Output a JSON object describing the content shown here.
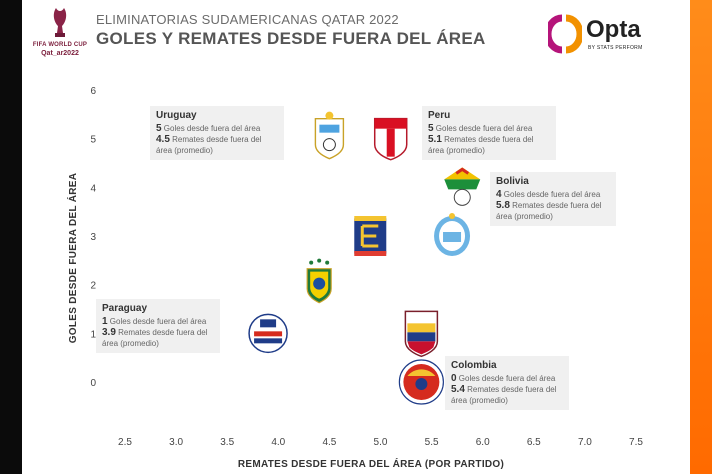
{
  "header": {
    "subtitle": "ELIMINATORIAS SUDAMERICANAS QATAR 2022",
    "title": "GOLES Y REMATES DESDE FUERA DEL ÁREA"
  },
  "wc_logo": {
    "line1": "FIFA WORLD CUP",
    "line2": "Qat_ar2022"
  },
  "opta": {
    "brand": "Opta",
    "by": "BY STATS PERFORM",
    "accent_left": "#b5147a",
    "accent_right": "#f29100"
  },
  "colors": {
    "background": "#ffffff",
    "side_strip": "#ff6a00",
    "grid": "#e6e6e6",
    "annotation_bg": "#f0f0f0"
  },
  "chart_data": {
    "type": "scatter",
    "xlabel": "REMATES DESDE FUERA DEL ÁREA (POR PARTIDO)",
    "ylabel": "GOLES DESDE FUERA DEL ÁREA",
    "xlim": [
      2.5,
      7.5
    ],
    "ylim": [
      0,
      6
    ],
    "x_ticks": [
      "2.5",
      "3.0",
      "3.5",
      "4.0",
      "4.5",
      "5.0",
      "5.5",
      "6.0",
      "6.5",
      "7.0",
      "7.5"
    ],
    "y_ticks": [
      "0",
      "1",
      "2",
      "3",
      "4",
      "5",
      "6"
    ],
    "grid": false,
    "points": [
      {
        "team": "Uruguay",
        "x": 4.5,
        "y": 5,
        "icon": "uruguay-crest-icon"
      },
      {
        "team": "Peru",
        "x": 5.1,
        "y": 5,
        "icon": "peru-crest-icon"
      },
      {
        "team": "Bolivia",
        "x": 5.8,
        "y": 4,
        "icon": "bolivia-crest-icon"
      },
      {
        "team": "Ecuador",
        "x": 4.9,
        "y": 3,
        "icon": "ecuador-crest-icon"
      },
      {
        "team": "Argentina",
        "x": 5.7,
        "y": 3,
        "icon": "argentina-crest-icon"
      },
      {
        "team": "Brazil",
        "x": 4.4,
        "y": 2,
        "icon": "brazil-crest-icon"
      },
      {
        "team": "Paraguay",
        "x": 3.9,
        "y": 1,
        "icon": "paraguay-crest-icon"
      },
      {
        "team": "Venezuela",
        "x": 5.4,
        "y": 1,
        "icon": "venezuela-crest-icon"
      },
      {
        "team": "Colombia",
        "x": 5.4,
        "y": 0,
        "icon": "colombia-crest-icon"
      }
    ],
    "annotations": [
      {
        "team": "Uruguay",
        "goals": "5",
        "goals_text": "Goles desde fuera del área",
        "shots": "4.5",
        "shots_text": "Remates desde fuera del",
        "shots_text2": "área (promedio)"
      },
      {
        "team": "Peru",
        "goals": "5",
        "goals_text": "Goles desde fuera del área",
        "shots": "5.1",
        "shots_text": "Remates desde fuera del",
        "shots_text2": "área (promedio)"
      },
      {
        "team": "Bolivia",
        "goals": "4",
        "goals_text": "Goles desde fuera del área",
        "shots": "5.8",
        "shots_text": "Remates desde fuera del",
        "shots_text2": "área (promedio)"
      },
      {
        "team": "Paraguay",
        "goals": "1",
        "goals_text": "Goles desde fuera del área",
        "shots": "3.9",
        "shots_text": "Remates desde fuera del",
        "shots_text2": "área (promedio)"
      },
      {
        "team": "Colombia",
        "goals": "0",
        "goals_text": "Goles desde fuera del área",
        "shots": "5.4",
        "shots_text": "Remates desde fuera del",
        "shots_text2": "área (promedio)"
      }
    ]
  }
}
